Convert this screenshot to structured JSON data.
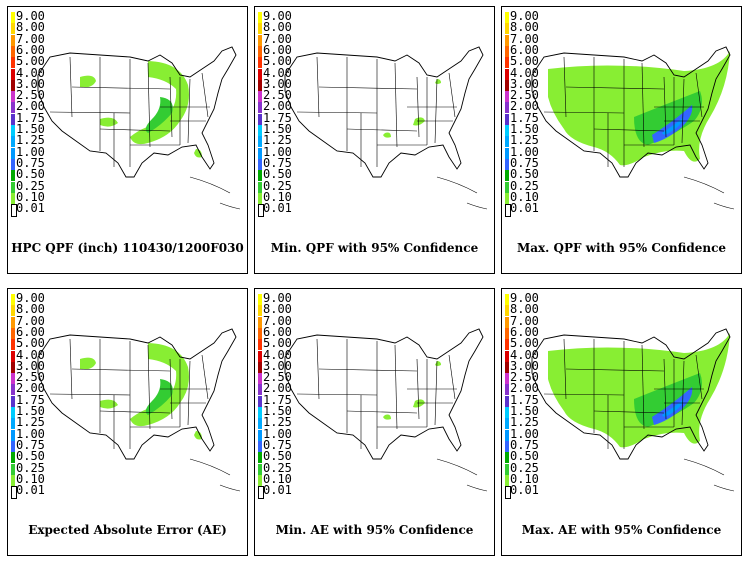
{
  "legend": {
    "labels": [
      "9.00",
      "8.00",
      "7.00",
      "6.00",
      "5.00",
      "4.00",
      "3.00",
      "2.50",
      "2.00",
      "1.75",
      "1.50",
      "1.25",
      "1.00",
      "0.75",
      "0.50",
      "0.25",
      "0.10",
      "0.01"
    ],
    "colors": [
      "#ffff00",
      "#ffd700",
      "#ff9900",
      "#ff6600",
      "#ff3300",
      "#dd0000",
      "#a00000",
      "#cc33cc",
      "#8833cc",
      "#5a33cc",
      "#00ccff",
      "#00aaff",
      "#0099ff",
      "#3366ff",
      "#00aa00",
      "#33cc33",
      "#88ee33",
      "#ffffff"
    ]
  },
  "panels": [
    {
      "caption": "HPC QPF (inch) 110430/1200F030",
      "level": "base"
    },
    {
      "caption": "Min. QPF with 95% Confidence",
      "level": "min"
    },
    {
      "caption": "Max. QPF with 95% Confidence",
      "level": "max"
    },
    {
      "caption": "Expected Absolute Error (AE)",
      "level": "base"
    },
    {
      "caption": "Min. AE with 95% Confidence",
      "level": "min"
    },
    {
      "caption": "Max. AE with 95% Confidence",
      "level": "max"
    }
  ]
}
